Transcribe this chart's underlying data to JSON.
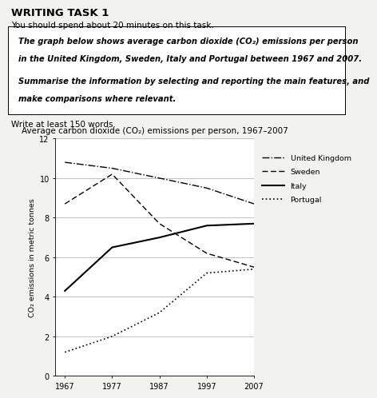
{
  "title": "Average carbon dioxide (CO₂) emissions per person, 1967–2007",
  "ylabel": "CO₂ emissions in metric tonnes",
  "years": [
    1967,
    1977,
    1987,
    1997,
    2007
  ],
  "uk": [
    10.8,
    10.5,
    10.0,
    9.5,
    8.7
  ],
  "sweden": [
    8.7,
    10.2,
    7.7,
    6.2,
    5.5
  ],
  "italy": [
    4.3,
    6.5,
    7.0,
    7.6,
    7.7
  ],
  "portugal": [
    1.2,
    2.0,
    3.2,
    5.2,
    5.4
  ],
  "ylim": [
    0,
    12
  ],
  "yticks": [
    0,
    2,
    4,
    6,
    8,
    10,
    12
  ],
  "header_title": "WRITING TASK 1",
  "header_sub": "You should spend about 20 minutes on this task.",
  "box_line1": "The graph below shows average carbon dioxide (CO₂) emissions per person",
  "box_line2": "in the United Kingdom, Sweden, Italy and Portugal between 1967 and 2007.",
  "box_line3": "Summarise the information by selecting and reporting the main features, and",
  "box_line4": "make comparisons where relevant.",
  "footer_text": "Write at least 150 words.",
  "legend_labels": [
    "United Kingdom",
    "Sweden",
    "Italy",
    "Portugal"
  ],
  "fig_bg": "#f2f2ee"
}
